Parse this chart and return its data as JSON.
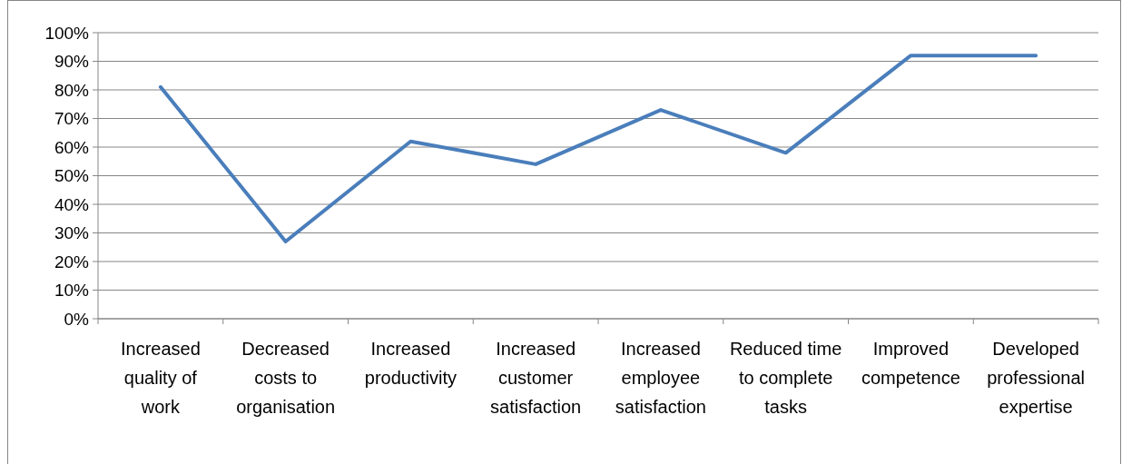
{
  "chart_data": {
    "type": "line",
    "categories": [
      "Increased quality of work",
      "Decreased costs to organisation",
      "Increased productivity",
      "Increased customer satisfaction",
      "Increased employee satisfaction",
      "Reduced time to complete tasks",
      "Improved competence",
      "Developed professional expertise"
    ],
    "series": [
      {
        "color": "#4a7ebb",
        "values": [
          81,
          27,
          62,
          54,
          73,
          58,
          92,
          92
        ]
      }
    ],
    "ylim": [
      0,
      100
    ],
    "yticks": [
      {
        "value": 0,
        "label": "0%"
      },
      {
        "value": 10,
        "label": "10%"
      },
      {
        "value": 20,
        "label": "20%"
      },
      {
        "value": 30,
        "label": "30%"
      },
      {
        "value": 40,
        "label": "40%"
      },
      {
        "value": 50,
        "label": "50%"
      },
      {
        "value": 60,
        "label": "60%"
      },
      {
        "value": 70,
        "label": "70%"
      },
      {
        "value": 80,
        "label": "80%"
      },
      {
        "value": 90,
        "label": "90%"
      },
      {
        "value": 100,
        "label": "100%"
      }
    ],
    "grid": "y",
    "marker": "none",
    "line_style": "solid"
  }
}
